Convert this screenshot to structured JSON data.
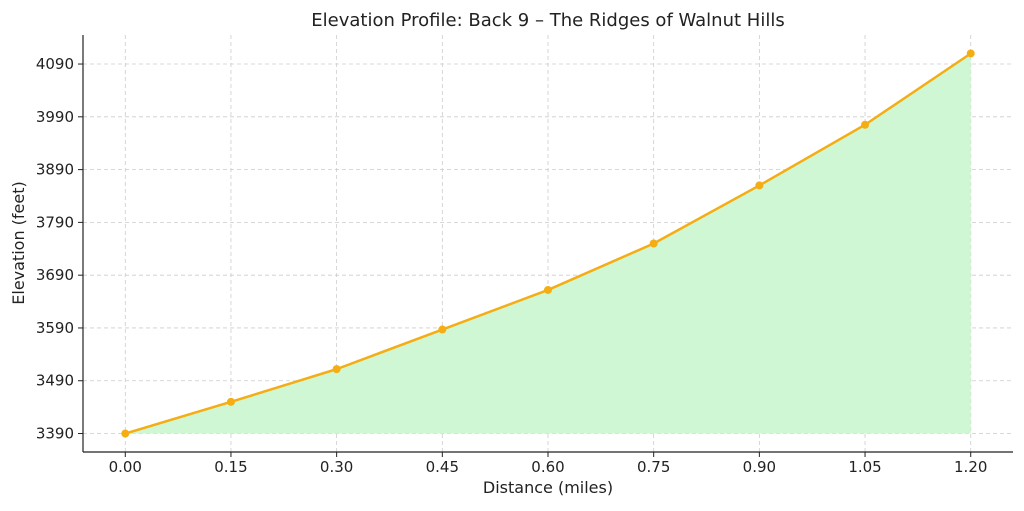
{
  "chart_data": {
    "type": "area",
    "title": "Elevation Profile: Back 9 – The Ridges of Walnut Hills",
    "xlabel": "Distance (miles)",
    "ylabel": "Elevation (feet)",
    "x": [
      0.0,
      0.15,
      0.3,
      0.45,
      0.6,
      0.75,
      0.9,
      1.05,
      1.2
    ],
    "series": [
      {
        "values": [
          3390,
          3450,
          3512,
          3587,
          3662,
          3750,
          3860,
          3975,
          4110
        ]
      }
    ],
    "x_tick_labels": [
      "0.00",
      "0.15",
      "0.30",
      "0.45",
      "0.60",
      "0.75",
      "0.90",
      "1.05",
      "1.20"
    ],
    "y_tick_labels": [
      "3390",
      "3490",
      "3590",
      "3690",
      "3790",
      "3890",
      "3990",
      "4090"
    ],
    "xlim": [
      -0.06,
      1.26
    ],
    "ylim": [
      3355,
      4145
    ],
    "grid": true,
    "line_color": "#f5ad14",
    "fill_color": "#cff7d3",
    "grid_color": "#cccccc"
  }
}
